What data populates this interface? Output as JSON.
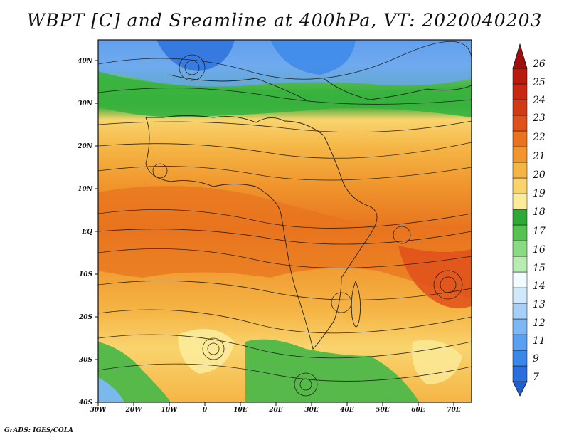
{
  "title": "WBPT [C] and Sreamline at 400hPa, VT: 2020040203",
  "credit": "GrADS: IGES/COLA",
  "map": {
    "lat_ticks": [
      "40N",
      "30N",
      "20N",
      "10N",
      "EQ",
      "10S",
      "20S",
      "30S",
      "40S"
    ],
    "lon_ticks": [
      "30W",
      "20W",
      "10W",
      "0",
      "10E",
      "20E",
      "30E",
      "40E",
      "50E",
      "60E",
      "70E"
    ]
  },
  "colorbar": {
    "labels": [
      "7",
      "9",
      "11",
      "12",
      "13",
      "14",
      "15",
      "16",
      "17",
      "18",
      "19",
      "20",
      "21",
      "22",
      "23",
      "24",
      "25",
      "26"
    ],
    "colors": [
      "#2a6fdb",
      "#3b87e8",
      "#5aa0f0",
      "#7db8f5",
      "#a6d0f8",
      "#d6ecfb",
      "#b9ecb3",
      "#8ad983",
      "#56c24f",
      "#2ea836",
      "#fbeb9a",
      "#f9d46e",
      "#f5b545",
      "#f0962d",
      "#e8741f",
      "#e0501a",
      "#c82812",
      "#a00d0d"
    ]
  }
}
